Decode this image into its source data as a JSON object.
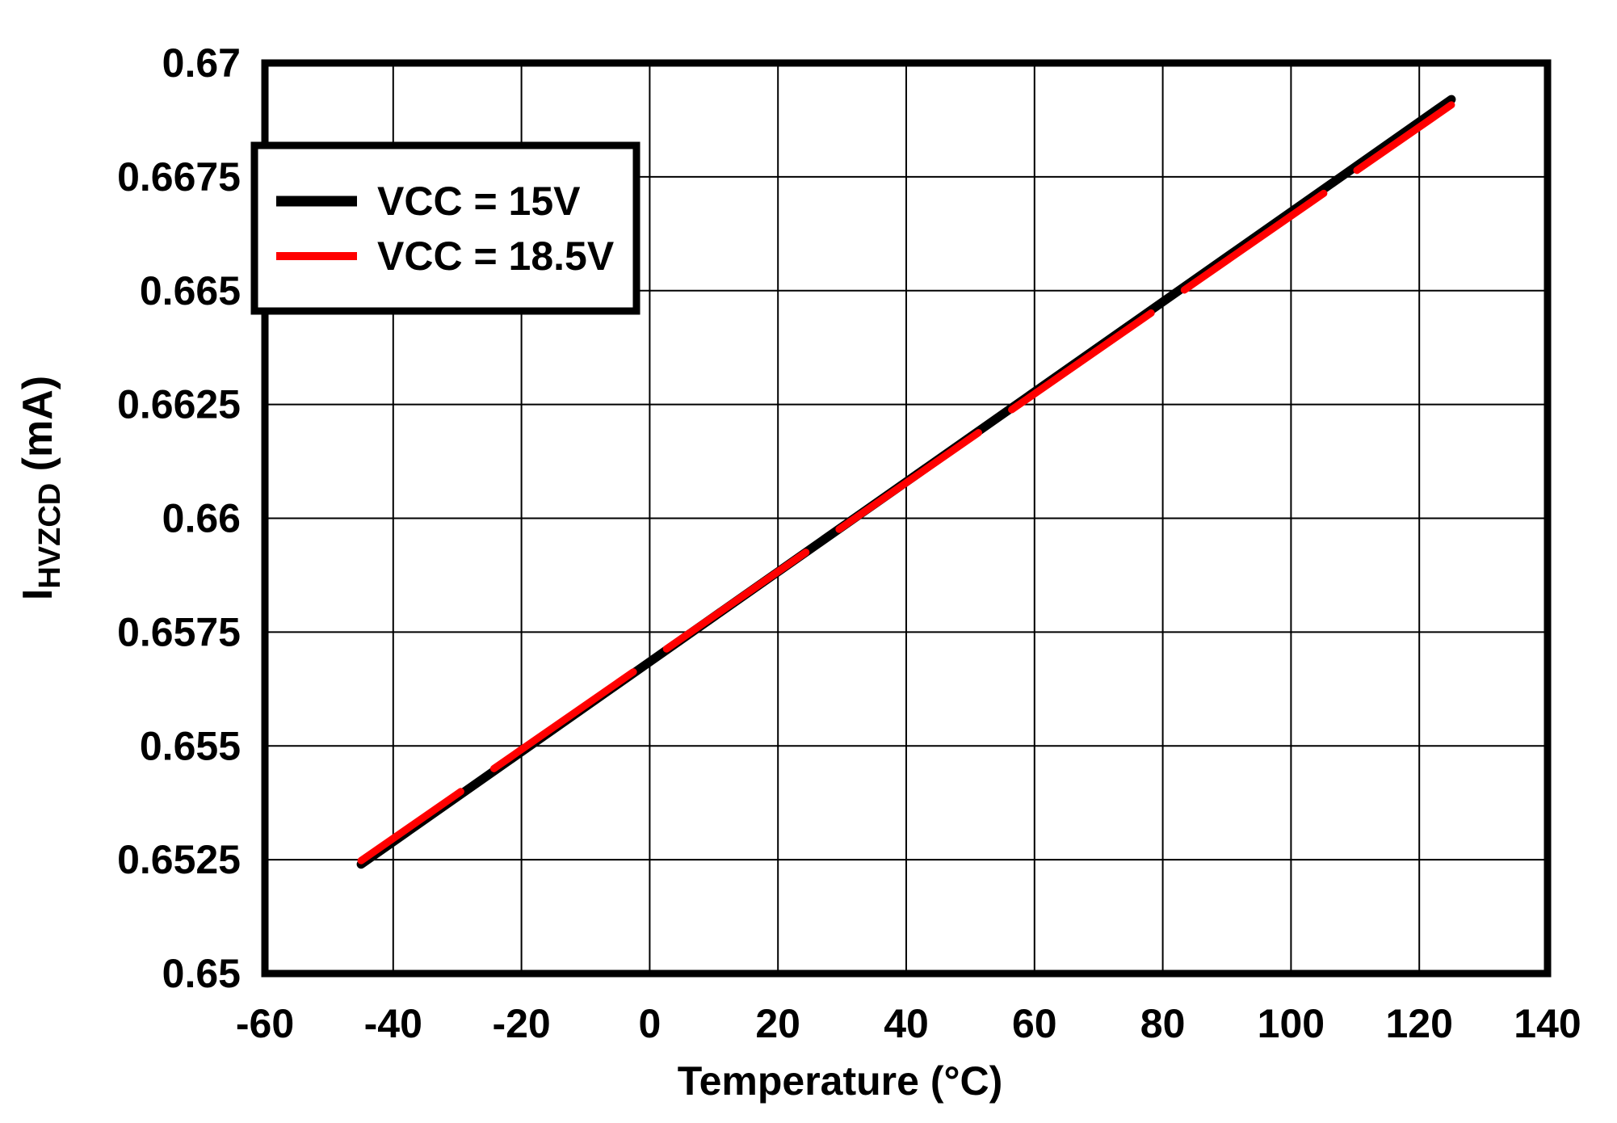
{
  "chart_data": {
    "type": "line",
    "title": "",
    "xlabel": "Temperature (°C)",
    "ylabel": {
      "prefix": "I",
      "sub": "HVZCD",
      "suffix": " (mA)"
    },
    "xlim": [
      -60,
      140
    ],
    "ylim": [
      0.65,
      0.67
    ],
    "xtick_values": [
      -60,
      -40,
      -20,
      0,
      20,
      40,
      60,
      80,
      100,
      120,
      140
    ],
    "xtick_labels": [
      "-60",
      "-40",
      "-20",
      "0",
      "20",
      "40",
      "60",
      "80",
      "100",
      "120",
      "140"
    ],
    "ytick_values": [
      0.65,
      0.6525,
      0.655,
      0.6575,
      0.66,
      0.6625,
      0.665,
      0.6675,
      0.67
    ],
    "ytick_labels": [
      "0.65",
      "0.6525",
      "0.655",
      "0.6575",
      "0.66",
      "0.6625",
      "0.665",
      "0.6675",
      "0.67"
    ],
    "grid": true,
    "legend": {
      "position": "top-left",
      "entries": [
        {
          "label": "VCC = 15V",
          "color": "#000000"
        },
        {
          "label": "VCC = 18.5V",
          "color": "#ff0000"
        }
      ]
    },
    "series": [
      {
        "name": "VCC = 15V",
        "color": "#000000",
        "points": [
          [
            -45,
            0.6524
          ],
          [
            125,
            0.6692
          ]
        ]
      },
      {
        "name": "VCC = 18.5V",
        "color": "#ff0000",
        "points": [
          [
            -45,
            0.65248
          ],
          [
            125,
            0.66908
          ]
        ]
      }
    ],
    "colors": {
      "grid": "#000000",
      "frame": "#000000",
      "background": "#ffffff"
    }
  }
}
